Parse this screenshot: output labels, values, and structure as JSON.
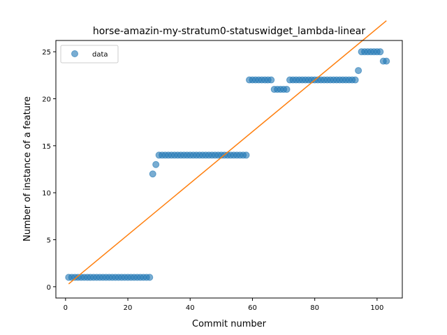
{
  "chart_data": {
    "type": "scatter",
    "title": "horse-amazin-my-stratum0-statuswidget_lambda-linear",
    "xlabel": "Commit number",
    "ylabel": "Number of instance of a feature",
    "xlim": [
      -3.1,
      108.1
    ],
    "ylim": [
      -1.2,
      26.2
    ],
    "xticks": [
      0,
      20,
      40,
      60,
      80,
      100
    ],
    "yticks": [
      0,
      5,
      10,
      15,
      20,
      25
    ],
    "legend": {
      "position": "top-left",
      "entries": [
        "data"
      ]
    },
    "grid": false,
    "colors": {
      "points": "#1f77b4",
      "fit_line": "#ff7f0e"
    },
    "series": [
      {
        "name": "data",
        "kind": "scatter",
        "x": [
          1,
          2,
          3,
          4,
          5,
          6,
          7,
          8,
          9,
          10,
          11,
          12,
          13,
          14,
          15,
          16,
          17,
          18,
          19,
          20,
          21,
          22,
          23,
          24,
          25,
          26,
          27,
          28,
          29,
          30,
          31,
          32,
          33,
          34,
          35,
          36,
          37,
          38,
          39,
          40,
          41,
          42,
          43,
          44,
          45,
          46,
          47,
          48,
          49,
          50,
          51,
          52,
          53,
          54,
          55,
          56,
          57,
          58,
          59,
          60,
          61,
          62,
          63,
          64,
          65,
          66,
          67,
          68,
          69,
          70,
          71,
          72,
          73,
          74,
          75,
          76,
          77,
          78,
          79,
          80,
          81,
          82,
          83,
          84,
          85,
          86,
          87,
          88,
          89,
          90,
          91,
          92,
          93,
          94,
          95,
          96,
          97,
          98,
          99,
          100,
          101,
          102,
          103
        ],
        "y": [
          1,
          1,
          1,
          1,
          1,
          1,
          1,
          1,
          1,
          1,
          1,
          1,
          1,
          1,
          1,
          1,
          1,
          1,
          1,
          1,
          1,
          1,
          1,
          1,
          1,
          1,
          1,
          12,
          13,
          14,
          14,
          14,
          14,
          14,
          14,
          14,
          14,
          14,
          14,
          14,
          14,
          14,
          14,
          14,
          14,
          14,
          14,
          14,
          14,
          14,
          14,
          14,
          14,
          14,
          14,
          14,
          14,
          14,
          22,
          22,
          22,
          22,
          22,
          22,
          22,
          22,
          21,
          21,
          21,
          21,
          21,
          22,
          22,
          22,
          22,
          22,
          22,
          22,
          22,
          22,
          22,
          22,
          22,
          22,
          22,
          22,
          22,
          22,
          22,
          22,
          22,
          22,
          22,
          23,
          25,
          25,
          25,
          25,
          25,
          25,
          25,
          24,
          24
        ]
      },
      {
        "kind": "line",
        "x": [
          1,
          103
        ],
        "y": [
          0.3,
          28.3
        ]
      }
    ]
  }
}
